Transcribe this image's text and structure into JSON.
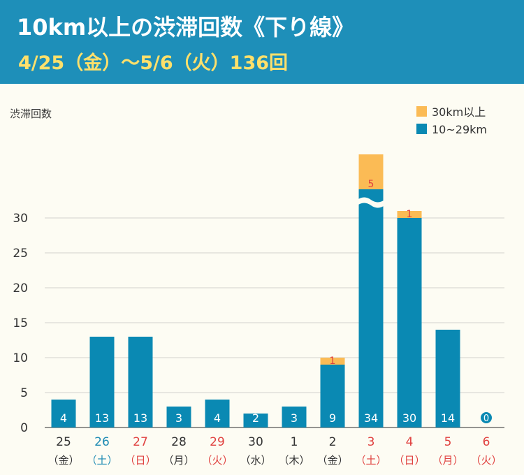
{
  "header": {
    "title": "10km以上の渋滞回数《下り線》",
    "subtitle": "4/25（金）～5/6（火）136回"
  },
  "colors": {
    "header_bg": "#1e8fb9",
    "series_10_29": "#0a89b3",
    "series_30plus": "#fbbb55",
    "weekend_blue": "#1c8ab3",
    "holiday_red": "#e0413f"
  },
  "chart_data": {
    "type": "bar",
    "stacked": true,
    "ylabel": "渋滞回数",
    "ylim": [
      0,
      30
    ],
    "yticks": [
      0,
      5,
      10,
      15,
      20,
      25,
      30
    ],
    "axis_break": true,
    "grid": true,
    "legend_position": "top-right",
    "categories": [
      {
        "day": "25",
        "weekday": "（金）",
        "color": "black"
      },
      {
        "day": "26",
        "weekday": "（土）",
        "color": "blue"
      },
      {
        "day": "27",
        "weekday": "（日）",
        "color": "red"
      },
      {
        "day": "28",
        "weekday": "（月）",
        "color": "black"
      },
      {
        "day": "29",
        "weekday": "（火）",
        "color": "red"
      },
      {
        "day": "30",
        "weekday": "（水）",
        "color": "black"
      },
      {
        "day": "1",
        "weekday": "（木）",
        "color": "black"
      },
      {
        "day": "2",
        "weekday": "（金）",
        "color": "black"
      },
      {
        "day": "3",
        "weekday": "（土）",
        "color": "red"
      },
      {
        "day": "4",
        "weekday": "（日）",
        "color": "red"
      },
      {
        "day": "5",
        "weekday": "（月）",
        "color": "red"
      },
      {
        "day": "6",
        "weekday": "（火）",
        "color": "red"
      }
    ],
    "series": [
      {
        "name": "10~29km",
        "values": [
          4,
          13,
          13,
          3,
          4,
          2,
          3,
          9,
          34,
          30,
          14,
          0
        ]
      },
      {
        "name": "30km以上",
        "values": [
          0,
          0,
          0,
          0,
          0,
          0,
          0,
          1,
          5,
          1,
          0,
          0
        ]
      }
    ]
  }
}
